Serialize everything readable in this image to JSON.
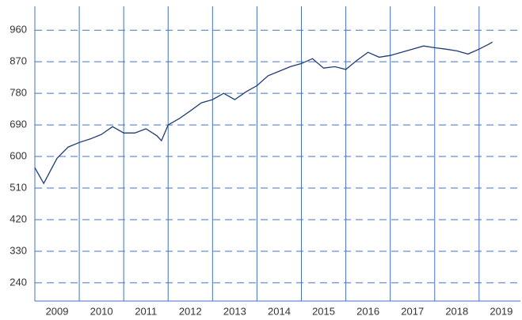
{
  "chart_data": {
    "type": "line",
    "xlabels": [
      "2009",
      "2010",
      "2011",
      "2012",
      "2013",
      "2014",
      "2015",
      "2016",
      "2017",
      "2018",
      "2019"
    ],
    "x": [
      2009.0,
      2009.2,
      2009.5,
      2009.75,
      2010.0,
      2010.25,
      2010.5,
      2010.75,
      2011.0,
      2011.25,
      2011.5,
      2011.75,
      2011.85,
      2012.0,
      2012.25,
      2012.5,
      2012.75,
      2013.0,
      2013.25,
      2013.5,
      2013.75,
      2014.0,
      2014.25,
      2014.5,
      2014.75,
      2015.0,
      2015.25,
      2015.5,
      2015.75,
      2016.0,
      2016.25,
      2016.5,
      2016.75,
      2017.0,
      2017.25,
      2017.5,
      2017.75,
      2018.0,
      2018.25,
      2018.5,
      2018.75,
      2019.0,
      2019.2,
      2019.3
    ],
    "series": [
      {
        "color": "#1f3c73",
        "values": [
          568,
          523,
          595,
          627,
          640,
          650,
          663,
          685,
          667,
          667,
          679,
          659,
          645,
          690,
          708,
          730,
          753,
          762,
          780,
          762,
          784,
          802,
          830,
          843,
          856,
          865,
          879,
          852,
          856,
          848,
          874,
          897,
          883,
          888,
          897,
          906,
          915,
          910,
          906,
          901,
          892,
          906,
          919,
          926
        ]
      }
    ],
    "xlim": [
      2009,
      2019.93
    ],
    "xticks": [
      2010,
      2011,
      2012,
      2013,
      2014,
      2015,
      2016,
      2017,
      2018,
      2019
    ],
    "ylim": [
      188,
      1028
    ],
    "yticks": [
      240,
      330,
      420,
      510,
      600,
      690,
      780,
      870,
      960
    ],
    "grid": true,
    "axis_color": "#4472c4"
  }
}
